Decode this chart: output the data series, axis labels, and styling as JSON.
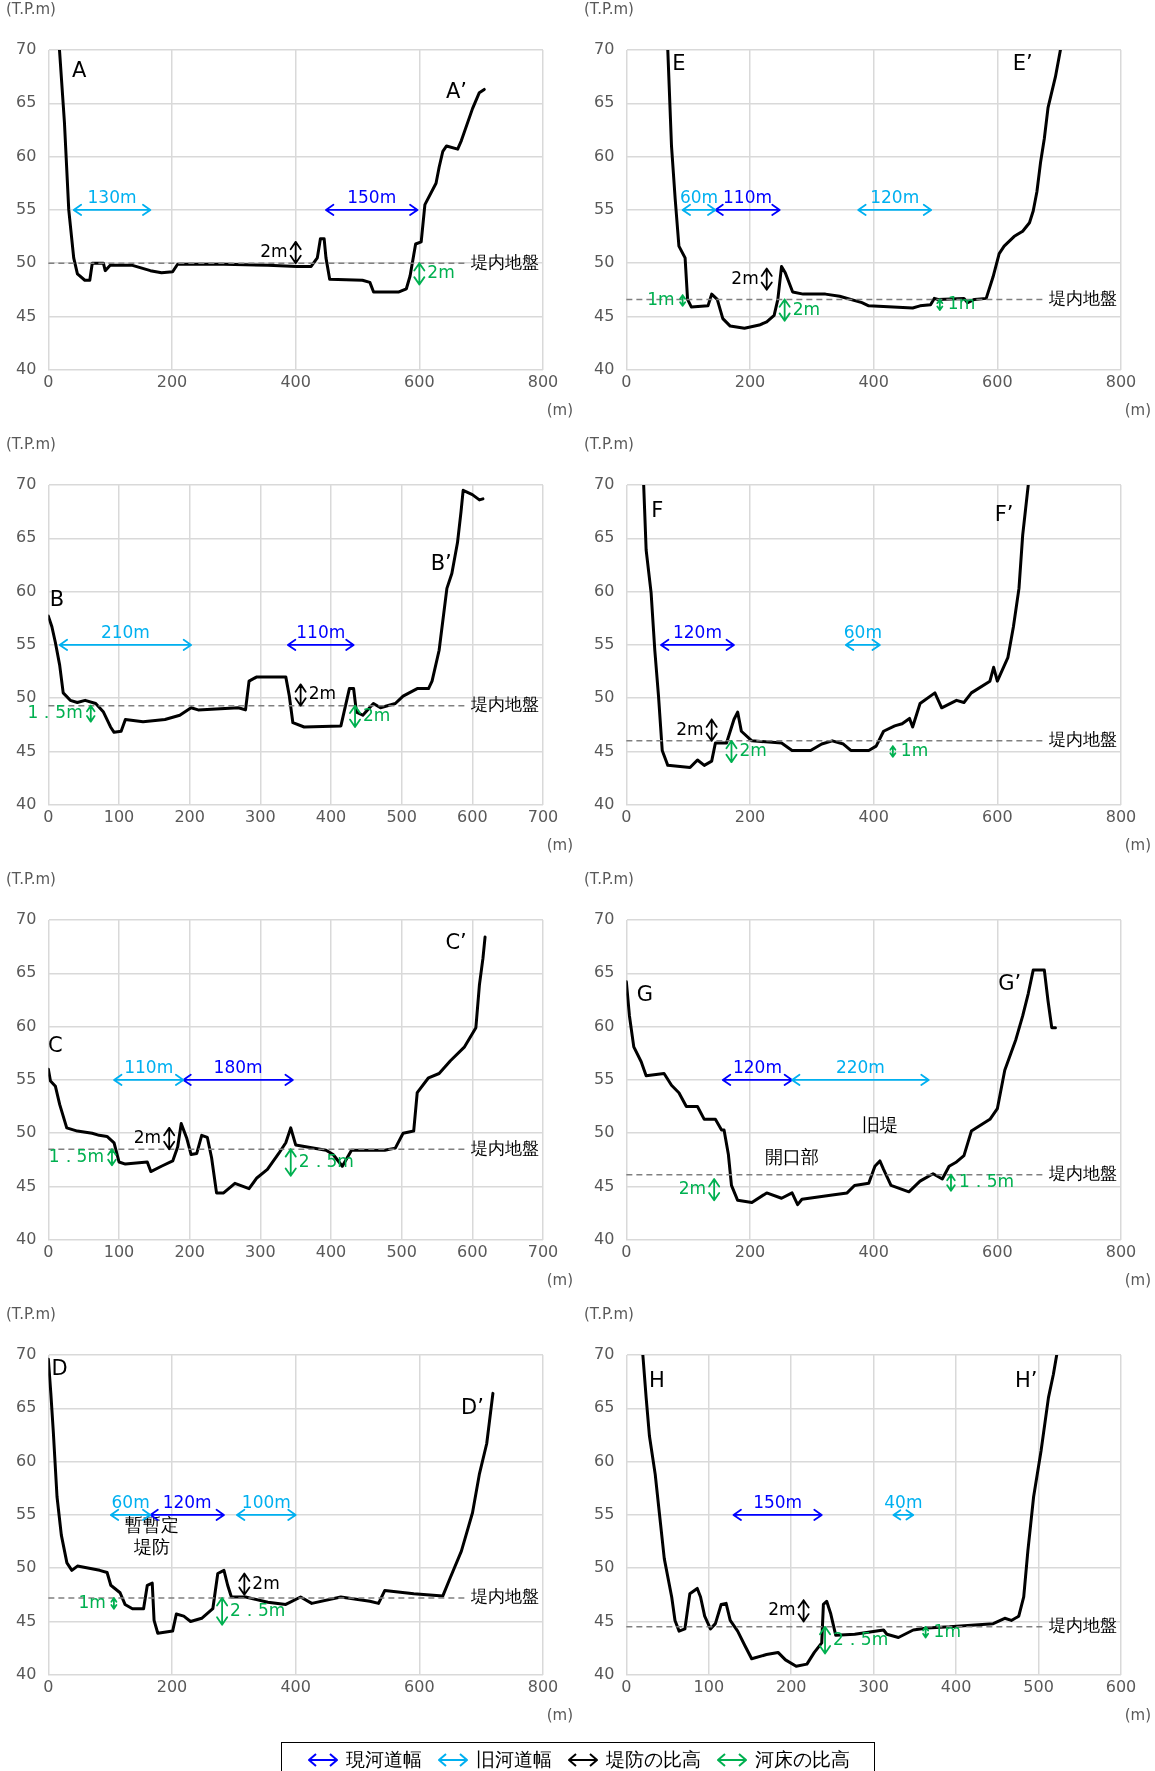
{
  "chart_data": [
    {
      "type": "line",
      "ylabel": "(T.P.m)",
      "xlabel": "(m)",
      "xlim": [
        0,
        800
      ],
      "xticks": [
        0,
        200,
        400,
        600,
        800
      ],
      "ylim": [
        40,
        70
      ],
      "yticks": [
        40,
        45,
        50,
        55,
        60,
        65,
        70
      ],
      "grid": true,
      "marker": "none",
      "line_style": "solid",
      "ref_lines": [
        {
          "axis": "y",
          "value": 50,
          "label": "堤内地盤",
          "color": "#808080",
          "line_style": "dashed"
        }
      ],
      "annotations": [
        "A",
        "A’",
        "150m",
        "130m",
        "2m",
        "2m"
      ],
      "series": [
        {
          "color": "#000000",
          "x": [
            18,
            26,
            33,
            41,
            47,
            59,
            67,
            71,
            89,
            92,
            100,
            136,
            165,
            183,
            201,
            209,
            284,
            355,
            402,
            425,
            435,
            440,
            446,
            449,
            455,
            508,
            520,
            526,
            567,
            579,
            585,
            594,
            603,
            609,
            627,
            632,
            638,
            644,
            662,
            668,
            686,
            697,
            705
          ],
          "values": [
            70,
            63.2,
            55,
            50.5,
            49,
            48.4,
            48.4,
            50,
            50,
            49.3,
            49.8,
            49.8,
            49.3,
            49.1,
            49.2,
            49.9,
            49.9,
            49.8,
            49.7,
            49.7,
            50.5,
            52.3,
            52.3,
            50.5,
            48.5,
            48.4,
            48.2,
            47.3,
            47.3,
            47.6,
            48.8,
            51.8,
            52,
            55.5,
            57.5,
            59,
            60.5,
            61,
            60.7,
            61.5,
            64.5,
            66,
            66.3
          ]
        }
      ]
    },
    {
      "type": "line",
      "ylabel": "(T.P.m)",
      "xlabel": "(m)",
      "xlim": [
        0,
        800
      ],
      "xticks": [
        0,
        200,
        400,
        600,
        800
      ],
      "ylim": [
        40,
        70
      ],
      "yticks": [
        40,
        45,
        50,
        55,
        60,
        65,
        70
      ],
      "grid": true,
      "marker": "none",
      "line_style": "solid",
      "ref_lines": [
        {
          "axis": "y",
          "value": 46.6,
          "label": "堤内地盤",
          "color": "#808080",
          "line_style": "dashed"
        }
      ],
      "annotations": [
        "E",
        "E’",
        "110m",
        "60m",
        "120m",
        "2m",
        "1m",
        "2m",
        "1m"
      ],
      "series": [
        {
          "color": "#000000",
          "x": [
            67,
            73,
            79,
            85,
            95,
            99,
            105,
            132,
            138,
            147,
            156,
            168,
            191,
            215,
            227,
            239,
            245,
            251,
            257,
            269,
            286,
            322,
            345,
            381,
            392,
            463,
            475,
            492,
            498,
            504,
            546,
            552,
            563,
            582,
            593,
            603,
            611,
            627,
            641,
            652,
            658,
            664,
            670,
            676,
            682,
            694,
            702
          ],
          "values": [
            70,
            61,
            56,
            51.6,
            50.5,
            46.6,
            45.9,
            46,
            47.1,
            46.6,
            44.8,
            44.1,
            43.9,
            44.2,
            44.5,
            45.1,
            46.6,
            49.7,
            49.1,
            47.3,
            47.1,
            47.1,
            46.9,
            46.3,
            46,
            45.8,
            46,
            46.1,
            46.7,
            46.6,
            46.7,
            46.3,
            46.6,
            46.7,
            48.7,
            50.9,
            51.6,
            52.5,
            53,
            53.8,
            54.9,
            56.7,
            59.5,
            61.7,
            64.6,
            67.5,
            70
          ]
        }
      ]
    },
    {
      "type": "line",
      "ylabel": "(T.P.m)",
      "xlabel": "(m)",
      "xlim": [
        0,
        700
      ],
      "xticks": [
        0,
        100,
        200,
        300,
        400,
        500,
        600,
        700
      ],
      "ylim": [
        40,
        70
      ],
      "yticks": [
        40,
        45,
        50,
        55,
        60,
        65,
        70
      ],
      "grid": true,
      "marker": "none",
      "line_style": "solid",
      "ref_lines": [
        {
          "axis": "y",
          "value": 49.3,
          "label": "堤内地盤",
          "color": "#808080",
          "line_style": "dashed"
        }
      ],
      "annotations": [
        "B",
        "B’",
        "110m",
        "210m",
        "2m",
        "1．5m",
        "2m"
      ],
      "series": [
        {
          "color": "#000000",
          "x": [
            0,
            5,
            10,
            16,
            21,
            31,
            41,
            52,
            67,
            78,
            88,
            93,
            103,
            109,
            134,
            165,
            186,
            202,
            212,
            269,
            279,
            284,
            295,
            336,
            341,
            346,
            362,
            414,
            426,
            432,
            436,
            445,
            460,
            470,
            491,
            502,
            522,
            538,
            543,
            553,
            564,
            571,
            579,
            584,
            587,
            600,
            610,
            615
          ],
          "values": [
            57.7,
            56.7,
            55.2,
            53.1,
            50.5,
            49.8,
            49.6,
            49.8,
            49.5,
            48.7,
            47.3,
            46.8,
            46.9,
            48,
            47.8,
            48,
            48.4,
            49.1,
            48.9,
            49.1,
            48.9,
            51.6,
            52,
            52,
            50.2,
            47.7,
            47.3,
            47.4,
            50.9,
            50.9,
            48.7,
            48.4,
            49.5,
            49.1,
            49.5,
            50.2,
            50.9,
            50.9,
            51.6,
            54.5,
            60.3,
            61.7,
            64.6,
            67.5,
            69.5,
            69.1,
            68.6,
            68.7
          ]
        }
      ]
    },
    {
      "type": "line",
      "ylabel": "(T.P.m)",
      "xlabel": "(m)",
      "xlim": [
        0,
        800
      ],
      "xticks": [
        0,
        200,
        400,
        600,
        800
      ],
      "ylim": [
        40,
        70
      ],
      "yticks": [
        40,
        45,
        50,
        55,
        60,
        65,
        70
      ],
      "grid": true,
      "marker": "none",
      "line_style": "solid",
      "ref_lines": [
        {
          "axis": "y",
          "value": 46,
          "label": "堤内地盤",
          "color": "#808080",
          "line_style": "dashed"
        }
      ],
      "annotations": [
        "F",
        "F’",
        "120m",
        "60m",
        "2m",
        "2m",
        "1m"
      ],
      "series": [
        {
          "color": "#000000",
          "x": [
            28,
            32,
            40,
            46,
            52,
            58,
            67,
            103,
            115,
            126,
            138,
            144,
            162,
            174,
            180,
            186,
            203,
            251,
            268,
            298,
            316,
            333,
            351,
            363,
            392,
            404,
            416,
            434,
            446,
            458,
            463,
            475,
            499,
            510,
            534,
            546,
            558,
            588,
            594,
            600,
            617,
            626,
            635,
            641,
            650
          ],
          "values": [
            70,
            63.9,
            59.9,
            54.5,
            50.2,
            45.1,
            43.7,
            43.5,
            44.2,
            43.7,
            44.1,
            45.8,
            45.8,
            48,
            48.7,
            46.9,
            46,
            45.8,
            45.1,
            45.1,
            45.7,
            46,
            45.7,
            45.1,
            45.1,
            45.5,
            46.9,
            47.4,
            47.6,
            48.1,
            47.3,
            49.5,
            50.5,
            49.1,
            49.8,
            49.6,
            50.5,
            51.6,
            52.9,
            51.6,
            53.8,
            56.7,
            60.3,
            65.3,
            70
          ]
        }
      ]
    },
    {
      "type": "line",
      "ylabel": "(T.P.m)",
      "xlabel": "(m)",
      "xlim": [
        0,
        700
      ],
      "xticks": [
        0,
        100,
        200,
        300,
        400,
        500,
        600,
        700
      ],
      "ylim": [
        40,
        70
      ],
      "yticks": [
        40,
        45,
        50,
        55,
        60,
        65,
        70
      ],
      "grid": true,
      "marker": "none",
      "line_style": "solid",
      "ref_lines": [
        {
          "axis": "y",
          "value": 48.5,
          "label": "堤内地盤",
          "color": "#808080",
          "line_style": "dashed"
        }
      ],
      "annotations": [
        "C",
        "C’",
        "180m",
        "110m",
        "2m",
        "1．5m",
        "2．5m"
      ],
      "series": [
        {
          "color": "#000000",
          "x": [
            0,
            3,
            10,
            16,
            26,
            41,
            62,
            72,
            83,
            93,
            100,
            109,
            140,
            145,
            160,
            176,
            183,
            188,
            196,
            202,
            210,
            217,
            225,
            231,
            238,
            248,
            264,
            284,
            295,
            310,
            326,
            336,
            343,
            350,
            393,
            403,
            416,
            429,
            476,
            491,
            502,
            517,
            522,
            538,
            553,
            569,
            589,
            605,
            610,
            615,
            618
          ],
          "values": [
            56,
            54.9,
            54.4,
            52.7,
            50.5,
            50.2,
            50,
            49.8,
            49.7,
            49.1,
            47.3,
            47.1,
            47.3,
            46.4,
            46.9,
            47.4,
            48.7,
            50.9,
            49.5,
            48,
            48.1,
            49.8,
            49.6,
            47.7,
            44.4,
            44.4,
            45.3,
            44.8,
            45.8,
            46.6,
            48.1,
            49.1,
            50.5,
            48.9,
            48.4,
            48,
            46.9,
            48.4,
            48.4,
            48.6,
            50,
            50.2,
            53.8,
            55.2,
            55.6,
            56.8,
            58.1,
            59.9,
            63.9,
            66.4,
            68.4
          ]
        }
      ]
    },
    {
      "type": "line",
      "ylabel": "(T.P.m)",
      "xlabel": "(m)",
      "xlim": [
        0,
        800
      ],
      "xticks": [
        0,
        200,
        400,
        600,
        800
      ],
      "ylim": [
        40,
        70
      ],
      "yticks": [
        40,
        45,
        50,
        55,
        60,
        65,
        70
      ],
      "grid": true,
      "marker": "none",
      "line_style": "solid",
      "ref_lines": [
        {
          "axis": "y",
          "value": 46.1,
          "label": "堤内地盤",
          "color": "#808080",
          "line_style": "dashed"
        }
      ],
      "annotations": [
        "G",
        "G’",
        "120m",
        "220m",
        "2m",
        "1．5m",
        {
          "text": "開口部",
          "x": 268,
          "y": 44.4
        },
        {
          "text": "旧堤",
          "x": 410,
          "y": 47.4
        }
      ],
      "series": [
        {
          "color": "#000000",
          "x": [
            0,
            5,
            12,
            24,
            32,
            61,
            73,
            85,
            97,
            115,
            126,
            144,
            154,
            158,
            165,
            170,
            180,
            203,
            227,
            251,
            268,
            277,
            284,
            333,
            357,
            369,
            392,
            402,
            410,
            416,
            428,
            457,
            475,
            496,
            511,
            522,
            534,
            546,
            558,
            588,
            600,
            612,
            630,
            641,
            650,
            658,
            676,
            682,
            688,
            694
          ],
          "values": [
            64.2,
            61,
            58.1,
            56.7,
            55.4,
            55.6,
            54.5,
            53.8,
            52.5,
            52.5,
            51.3,
            51.3,
            50.3,
            50.3,
            48,
            45.1,
            43.7,
            43.5,
            44.4,
            43.9,
            44.4,
            43.3,
            43.8,
            44.2,
            44.4,
            45.1,
            45.3,
            46.9,
            47.4,
            46.6,
            45.1,
            44.5,
            45.5,
            46.2,
            45.7,
            46.9,
            47.3,
            47.9,
            50.2,
            51.3,
            52.3,
            55.9,
            58.8,
            61,
            63.1,
            65.3,
            65.3,
            62.4,
            59.9,
            59.9
          ]
        }
      ]
    },
    {
      "type": "line",
      "ylabel": "(T.P.m)",
      "xlabel": "(m)",
      "xlim": [
        0,
        800
      ],
      "xticks": [
        0,
        200,
        400,
        600,
        800
      ],
      "ylim": [
        40,
        70
      ],
      "yticks": [
        40,
        45,
        50,
        55,
        60,
        65,
        70
      ],
      "grid": true,
      "marker": "none",
      "line_style": "solid",
      "ref_lines": [
        {
          "axis": "y",
          "value": 47.2,
          "label": "堤内地盤",
          "color": "#808080",
          "line_style": "dashed"
        }
      ],
      "annotations": [
        "D",
        "D’",
        "120m",
        "60m",
        "100m",
        "2m",
        "1m",
        "2．5m",
        {
          "text": "暫暫定堤防",
          "x": 168,
          "y": 48.6
        }
      ],
      "series": [
        {
          "color": "#000000",
          "x": [
            0,
            4,
            8,
            14,
            21,
            30,
            38,
            47,
            83,
            95,
            101,
            116,
            124,
            136,
            154,
            160,
            168,
            171,
            177,
            201,
            207,
            219,
            230,
            248,
            266,
            274,
            284,
            290,
            296,
            319,
            355,
            384,
            408,
            426,
            473,
            520,
            534,
            544,
            591,
            638,
            650,
            668,
            686,
            697,
            709,
            719
          ],
          "values": [
            69.6,
            66.4,
            62.8,
            56.7,
            53.1,
            50.5,
            49.8,
            50.2,
            49.8,
            49.6,
            48.4,
            47.7,
            46.6,
            46.2,
            46.2,
            48.4,
            48.6,
            45.1,
            43.9,
            44.1,
            45.7,
            45.5,
            45,
            45.3,
            46.2,
            49.5,
            49.8,
            48.4,
            47.3,
            47.3,
            46.8,
            46.6,
            47.3,
            46.7,
            47.3,
            46.9,
            46.7,
            47.9,
            47.6,
            47.4,
            49.1,
            51.6,
            55.2,
            58.8,
            61.7,
            66.4
          ]
        }
      ]
    },
    {
      "type": "line",
      "ylabel": "(T.P.m)",
      "xlabel": "(m)",
      "xlim": [
        0,
        600
      ],
      "xticks": [
        0,
        100,
        200,
        300,
        400,
        500,
        600
      ],
      "ylim": [
        40,
        70
      ],
      "yticks": [
        40,
        45,
        50,
        55,
        60,
        65,
        70
      ],
      "grid": true,
      "marker": "none",
      "line_style": "solid",
      "ref_lines": [
        {
          "axis": "y",
          "value": 44.5,
          "label": "堤内地盤",
          "color": "#808080",
          "line_style": "dashed"
        }
      ],
      "annotations": [
        "H",
        "H’",
        "150m",
        "40m",
        "2m",
        "2．5m",
        "1m",
        "現河道幅",
        "旧河道幅",
        "堤防の比高",
        "河床の比高"
      ],
      "series": [
        {
          "color": "#000000",
          "x": [
            20,
            24,
            28,
            35,
            40,
            46,
            55,
            59,
            64,
            71,
            77,
            86,
            90,
            95,
            102,
            108,
            115,
            121,
            126,
            135,
            144,
            152,
            170,
            184,
            193,
            206,
            219,
            228,
            237,
            239,
            243,
            248,
            254,
            277,
            312,
            316,
            330,
            348,
            365,
            392,
            445,
            459,
            467,
            476,
            482,
            487,
            494,
            503,
            512,
            518,
            522
          ],
          "values": [
            70,
            66,
            62.4,
            58.8,
            55.2,
            50.9,
            47.3,
            45.1,
            44.1,
            44.3,
            47.6,
            48.1,
            47.3,
            45.5,
            44.3,
            44.8,
            46.6,
            46.7,
            45.1,
            44.1,
            42.7,
            41.5,
            41.9,
            42.1,
            41.4,
            40.8,
            41,
            42.1,
            43,
            46.6,
            46.9,
            45.7,
            43.7,
            43.8,
            44.2,
            43.8,
            43.5,
            44.2,
            44.4,
            44.5,
            44.8,
            45.3,
            45.1,
            45.5,
            47.3,
            51.6,
            56.7,
            61,
            66,
            68.2,
            70
          ]
        }
      ]
    }
  ]
}
